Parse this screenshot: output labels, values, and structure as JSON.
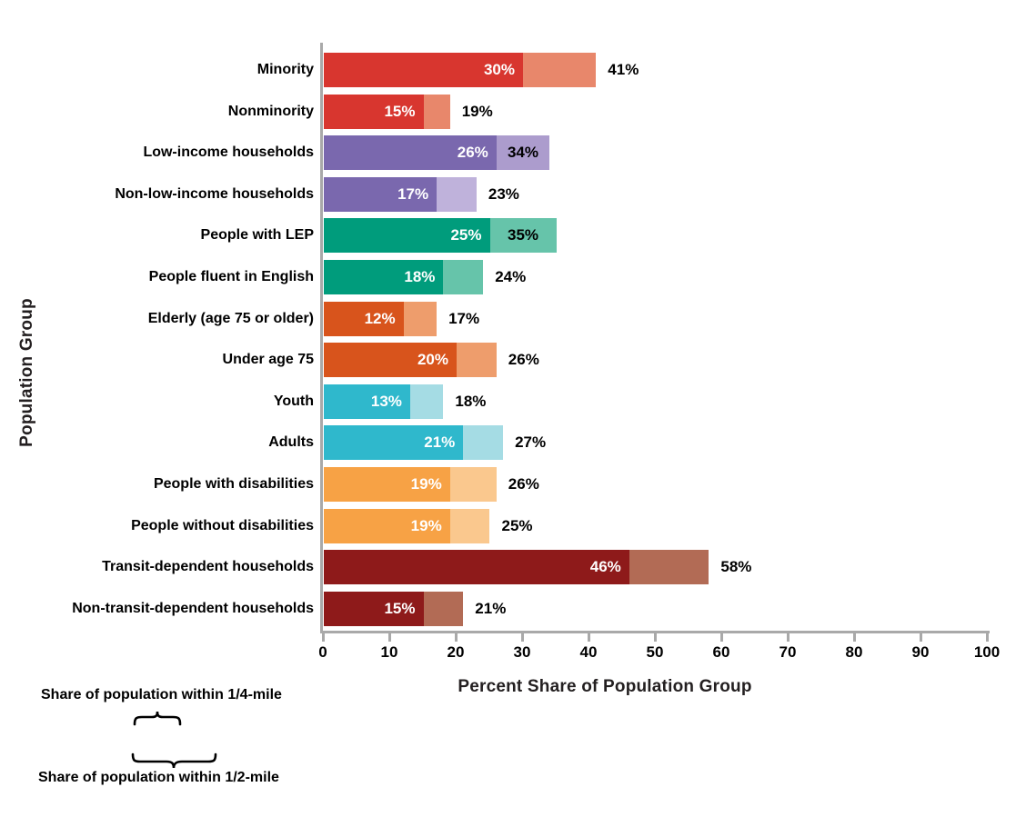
{
  "chart_data": {
    "type": "bar",
    "orientation": "horizontal",
    "stacked": true,
    "grid": false,
    "xlabel": "Percent Share of Population Group",
    "ylabel": "Population Group",
    "xlim": [
      0,
      100
    ],
    "x_ticks": [
      0,
      10,
      20,
      30,
      40,
      50,
      60,
      70,
      80,
      90,
      100
    ],
    "axis_color": "#a9a9a9",
    "legend": {
      "position": "bottom-left",
      "quarter_mile_label": "Share of population within 1/4-mile",
      "half_mile_label": "Share of population within 1/2-mile",
      "quarter_swatch_color": "#000000",
      "half_swatch_color": "#9c9c9c"
    },
    "rows": [
      {
        "label": "Minority",
        "quarter_pct": 30,
        "half_pct": 41,
        "quarter_label": "30%",
        "half_label": "41%",
        "dark_color": "#d8362f",
        "light_color": "#e8876b",
        "half_label_inside": false
      },
      {
        "label": "Nonminority",
        "quarter_pct": 15,
        "half_pct": 19,
        "quarter_label": "15%",
        "half_label": "19%",
        "dark_color": "#d8362f",
        "light_color": "#e8876b",
        "half_label_inside": false
      },
      {
        "label": "Low-income households",
        "quarter_pct": 26,
        "half_pct": 34,
        "quarter_label": "26%",
        "half_label": "34%",
        "dark_color": "#7a68ae",
        "light_color": "#ac9ccd",
        "half_label_inside": true
      },
      {
        "label": "Non-low-income households",
        "quarter_pct": 17,
        "half_pct": 23,
        "quarter_label": "17%",
        "half_label": "23%",
        "dark_color": "#7a68ae",
        "light_color": "#bfb2db",
        "half_label_inside": false
      },
      {
        "label": "People with LEP",
        "quarter_pct": 25,
        "half_pct": 35,
        "quarter_label": "25%",
        "half_label": "35%",
        "dark_color": "#009c7c",
        "light_color": "#66c4aa",
        "half_label_inside": true
      },
      {
        "label": "People fluent in English",
        "quarter_pct": 18,
        "half_pct": 24,
        "quarter_label": "18%",
        "half_label": "24%",
        "dark_color": "#009c7c",
        "light_color": "#66c4aa",
        "half_label_inside": false
      },
      {
        "label": "Elderly (age 75 or older)",
        "quarter_pct": 12,
        "half_pct": 17,
        "quarter_label": "12%",
        "half_label": "17%",
        "dark_color": "#d8541c",
        "light_color": "#ee9d6c",
        "half_label_inside": false
      },
      {
        "label": "Under age 75",
        "quarter_pct": 20,
        "half_pct": 26,
        "quarter_label": "20%",
        "half_label": "26%",
        "dark_color": "#d8541c",
        "light_color": "#ee9d6c",
        "half_label_inside": false
      },
      {
        "label": "Youth",
        "quarter_pct": 13,
        "half_pct": 18,
        "quarter_label": "13%",
        "half_label": "18%",
        "dark_color": "#2fb8cc",
        "light_color": "#a5dce4",
        "half_label_inside": false
      },
      {
        "label": "Adults",
        "quarter_pct": 21,
        "half_pct": 27,
        "quarter_label": "21%",
        "half_label": "27%",
        "dark_color": "#2fb8cc",
        "light_color": "#a5dce4",
        "half_label_inside": false
      },
      {
        "label": "People with disabilities",
        "quarter_pct": 19,
        "half_pct": 26,
        "quarter_label": "19%",
        "half_label": "26%",
        "dark_color": "#f7a245",
        "light_color": "#fac88e",
        "half_label_inside": false
      },
      {
        "label": "People without disabilities",
        "quarter_pct": 19,
        "half_pct": 25,
        "quarter_label": "19%",
        "half_label": "25%",
        "dark_color": "#f7a245",
        "light_color": "#fac88e",
        "half_label_inside": false
      },
      {
        "label": "Transit-dependent households",
        "quarter_pct": 46,
        "half_pct": 58,
        "quarter_label": "46%",
        "half_label": "58%",
        "dark_color": "#8e1a1a",
        "light_color": "#b26b55",
        "half_label_inside": false
      },
      {
        "label": "Non-transit-dependent households",
        "quarter_pct": 15,
        "half_pct": 21,
        "quarter_label": "15%",
        "half_label": "21%",
        "dark_color": "#8e1a1a",
        "light_color": "#b26b55",
        "half_label_inside": false
      }
    ]
  }
}
